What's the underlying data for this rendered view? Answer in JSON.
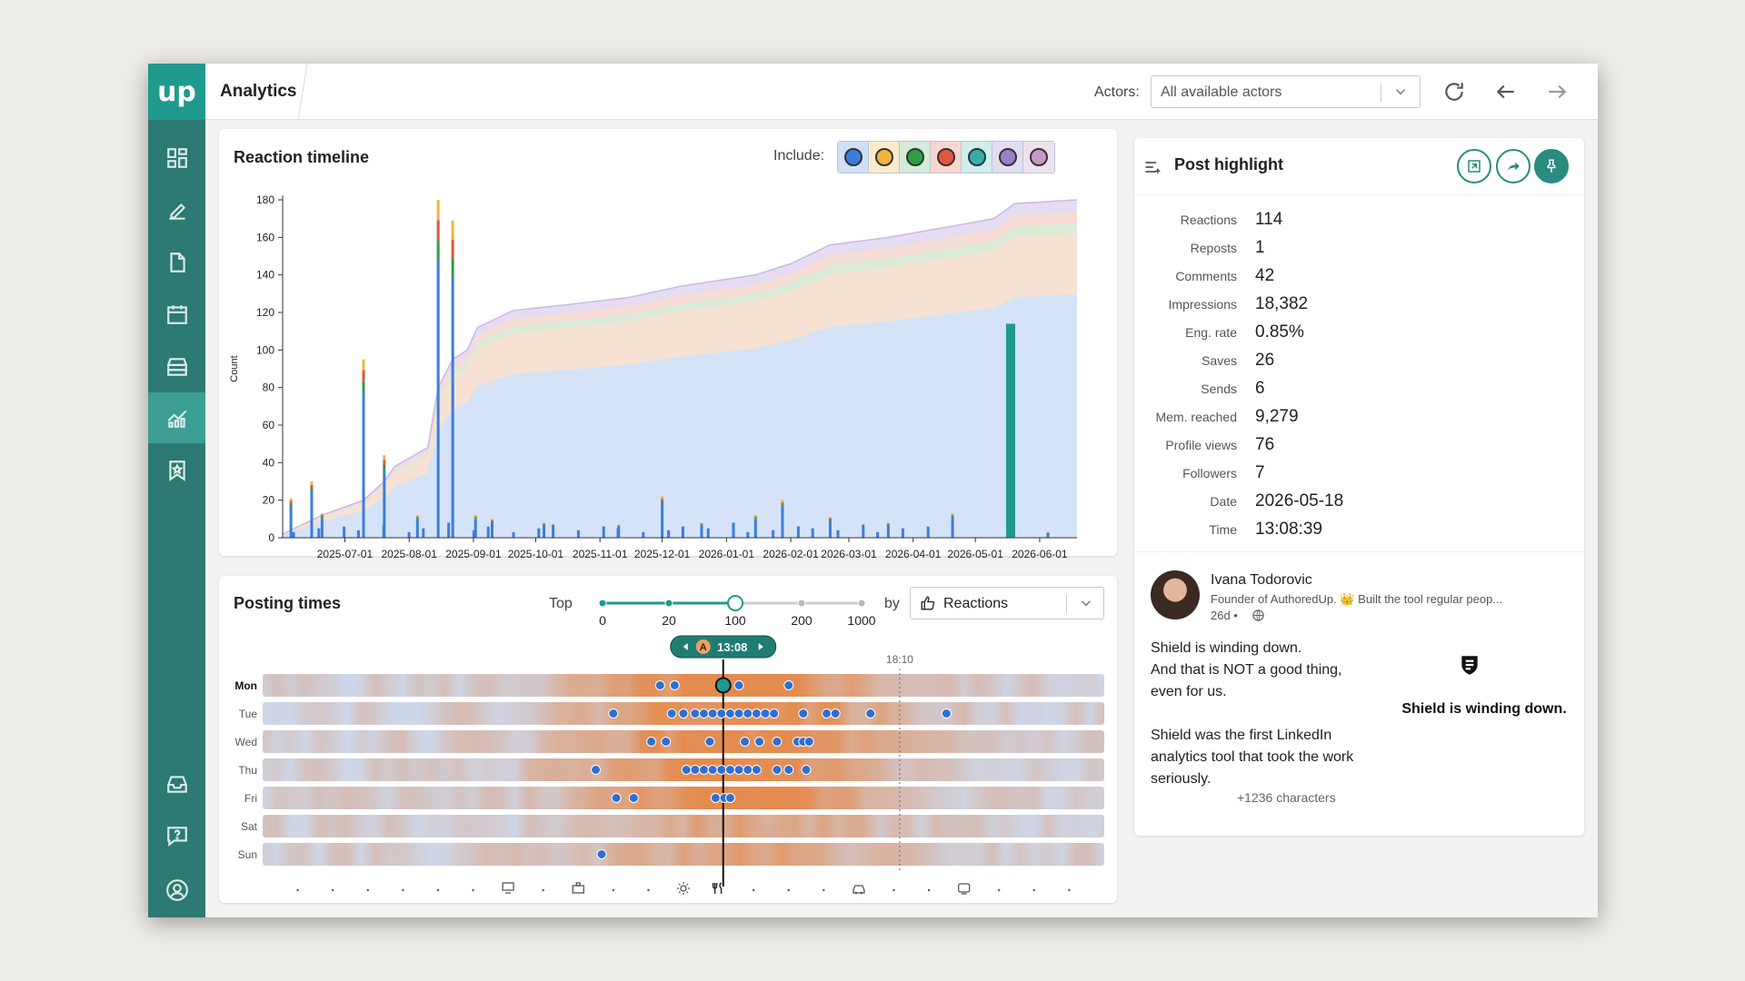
{
  "app": {
    "logo_text": "up",
    "title": "Analytics"
  },
  "topbar": {
    "actors_label": "Actors:",
    "actors_value": "All available actors"
  },
  "sidebar": {
    "items": [
      {
        "name": "dashboard",
        "active": false
      },
      {
        "name": "editor",
        "active": false
      },
      {
        "name": "posts",
        "active": false
      },
      {
        "name": "calendar",
        "active": false
      },
      {
        "name": "archive",
        "active": false
      },
      {
        "name": "analytics",
        "active": true
      },
      {
        "name": "bookmarks",
        "active": false
      },
      {
        "name": "inbox",
        "active": false
      },
      {
        "name": "help",
        "active": false
      },
      {
        "name": "account",
        "active": false
      }
    ]
  },
  "reaction_timeline": {
    "title": "Reaction timeline",
    "include_label": "Include:",
    "reaction_types": [
      {
        "name": "like",
        "color": "#3b7ddd"
      },
      {
        "name": "insightful",
        "color": "#f0b63c"
      },
      {
        "name": "support",
        "color": "#2f9e44"
      },
      {
        "name": "love",
        "color": "#e0573f"
      },
      {
        "name": "funny",
        "color": "#35b0a6"
      },
      {
        "name": "celebrate",
        "color": "#9b7fc9"
      },
      {
        "name": "curious",
        "color": "#c59ac2"
      }
    ]
  },
  "chart_data": {
    "type": "area",
    "ylabel": "Count",
    "ylim": [
      0,
      180
    ],
    "yticks": [
      0,
      20,
      40,
      60,
      80,
      100,
      120,
      140,
      160,
      180
    ],
    "x_ticks": [
      "2025-07-01",
      "2025-08-01",
      "2025-09-01",
      "2025-10-01",
      "2025-11-01",
      "2025-12-01",
      "2026-01-01",
      "2026-02-01",
      "2026-03-01",
      "2026-04-01",
      "2026-05-01",
      "2026-06-01"
    ],
    "x_range": [
      "2025-06-01",
      "2026-06-19"
    ],
    "cumulative": [
      {
        "date": "2025-06-01",
        "total": 2
      },
      {
        "date": "2025-06-20",
        "total": 12
      },
      {
        "date": "2025-07-10",
        "total": 20
      },
      {
        "date": "2025-07-20",
        "total": 30
      },
      {
        "date": "2025-07-25",
        "total": 38
      },
      {
        "date": "2025-08-10",
        "total": 48
      },
      {
        "date": "2025-08-15",
        "total": 80
      },
      {
        "date": "2025-08-22",
        "total": 95
      },
      {
        "date": "2025-08-29",
        "total": 100
      },
      {
        "date": "2025-09-03",
        "total": 112
      },
      {
        "date": "2025-09-20",
        "total": 121
      },
      {
        "date": "2025-10-15",
        "total": 124
      },
      {
        "date": "2025-11-15",
        "total": 128
      },
      {
        "date": "2025-12-10",
        "total": 134
      },
      {
        "date": "2026-01-15",
        "total": 140
      },
      {
        "date": "2026-02-01",
        "total": 146
      },
      {
        "date": "2026-02-20",
        "total": 156
      },
      {
        "date": "2026-03-20",
        "total": 160
      },
      {
        "date": "2026-04-20",
        "total": 166
      },
      {
        "date": "2026-05-10",
        "total": 170
      },
      {
        "date": "2026-05-20",
        "total": 178
      },
      {
        "date": "2026-06-19",
        "total": 180
      }
    ],
    "cumulative_like_share": 0.72,
    "bars": [
      {
        "date": "2025-06-05",
        "value": 21
      },
      {
        "date": "2025-06-15",
        "value": 30
      },
      {
        "date": "2025-06-20",
        "value": 13
      },
      {
        "date": "2025-07-10",
        "value": 95
      },
      {
        "date": "2025-07-20",
        "value": 44
      },
      {
        "date": "2025-08-05",
        "value": 12
      },
      {
        "date": "2025-08-15",
        "value": 180
      },
      {
        "date": "2025-08-22",
        "value": 169
      },
      {
        "date": "2025-09-02",
        "value": 12
      },
      {
        "date": "2025-09-10",
        "value": 10
      },
      {
        "date": "2025-10-05",
        "value": 8
      },
      {
        "date": "2025-11-10",
        "value": 7
      },
      {
        "date": "2025-12-01",
        "value": 22
      },
      {
        "date": "2025-12-20",
        "value": 8
      },
      {
        "date": "2026-01-15",
        "value": 12
      },
      {
        "date": "2026-01-28",
        "value": 20
      },
      {
        "date": "2026-02-20",
        "value": 11
      },
      {
        "date": "2026-03-20",
        "value": 8
      },
      {
        "date": "2026-04-20",
        "value": 13
      },
      {
        "date": "2026-05-18",
        "value": 114
      },
      {
        "date": "2026-06-05",
        "value": 3
      }
    ],
    "highlight_bar": {
      "date": "2026-05-18",
      "value": 114
    }
  },
  "posting_times": {
    "title": "Posting times",
    "top_label": "Top",
    "slider_ticks": [
      "0",
      "20",
      "100",
      "200",
      "1000"
    ],
    "slider_value": "100",
    "by_label": "by",
    "metric": "Reactions",
    "cursor_badge": "A",
    "cursor_time": "13:08",
    "reference_time": "18:10",
    "days": [
      "Mon",
      "Tue",
      "Wed",
      "Thu",
      "Fri",
      "Sat",
      "Sun"
    ],
    "active_day": "Mon",
    "posts": [
      {
        "day": 0,
        "time": "11:20"
      },
      {
        "day": 0,
        "time": "11:45"
      },
      {
        "day": 0,
        "time": "13:08"
      },
      {
        "day": 0,
        "time": "13:35"
      },
      {
        "day": 0,
        "time": "15:00"
      },
      {
        "day": 1,
        "time": "10:00"
      },
      {
        "day": 1,
        "time": "11:40"
      },
      {
        "day": 1,
        "time": "12:00"
      },
      {
        "day": 1,
        "time": "12:20"
      },
      {
        "day": 1,
        "time": "12:35"
      },
      {
        "day": 1,
        "time": "12:50"
      },
      {
        "day": 1,
        "time": "13:05"
      },
      {
        "day": 1,
        "time": "13:20"
      },
      {
        "day": 1,
        "time": "13:35"
      },
      {
        "day": 1,
        "time": "13:50"
      },
      {
        "day": 1,
        "time": "14:05"
      },
      {
        "day": 1,
        "time": "14:20"
      },
      {
        "day": 1,
        "time": "14:35"
      },
      {
        "day": 1,
        "time": "15:25"
      },
      {
        "day": 1,
        "time": "16:05"
      },
      {
        "day": 1,
        "time": "16:20"
      },
      {
        "day": 1,
        "time": "17:20"
      },
      {
        "day": 1,
        "time": "19:30"
      },
      {
        "day": 2,
        "time": "11:05"
      },
      {
        "day": 2,
        "time": "11:30"
      },
      {
        "day": 2,
        "time": "12:45"
      },
      {
        "day": 2,
        "time": "13:45"
      },
      {
        "day": 2,
        "time": "14:10"
      },
      {
        "day": 2,
        "time": "14:40"
      },
      {
        "day": 2,
        "time": "15:15"
      },
      {
        "day": 2,
        "time": "15:25"
      },
      {
        "day": 2,
        "time": "15:35"
      },
      {
        "day": 3,
        "time": "09:30"
      },
      {
        "day": 3,
        "time": "12:05"
      },
      {
        "day": 3,
        "time": "12:20"
      },
      {
        "day": 3,
        "time": "12:35"
      },
      {
        "day": 3,
        "time": "12:50"
      },
      {
        "day": 3,
        "time": "13:05"
      },
      {
        "day": 3,
        "time": "13:20"
      },
      {
        "day": 3,
        "time": "13:35"
      },
      {
        "day": 3,
        "time": "13:50"
      },
      {
        "day": 3,
        "time": "14:05"
      },
      {
        "day": 3,
        "time": "14:40"
      },
      {
        "day": 3,
        "time": "15:00"
      },
      {
        "day": 3,
        "time": "15:30"
      },
      {
        "day": 4,
        "time": "10:05"
      },
      {
        "day": 4,
        "time": "10:35"
      },
      {
        "day": 4,
        "time": "12:55"
      },
      {
        "day": 4,
        "time": "13:10"
      },
      {
        "day": 4,
        "time": "13:20"
      },
      {
        "day": 6,
        "time": "09:40"
      }
    ],
    "bottom_icons": [
      "monitor-icon",
      "briefcase-icon",
      "sun-icon",
      "utensils-icon",
      "car-icon",
      "tv-icon"
    ]
  },
  "post_highlight": {
    "title": "Post highlight",
    "stats": [
      {
        "label": "Reactions",
        "value": "114"
      },
      {
        "label": "Reposts",
        "value": "1"
      },
      {
        "label": "Comments",
        "value": "42"
      },
      {
        "label": "Impressions",
        "value": "18,382"
      },
      {
        "label": "Eng. rate",
        "value": "0.85%"
      },
      {
        "label": "Saves",
        "value": "26"
      },
      {
        "label": "Sends",
        "value": "6"
      },
      {
        "label": "Mem. reached",
        "value": "9,279"
      },
      {
        "label": "Profile views",
        "value": "76"
      },
      {
        "label": "Followers",
        "value": "7"
      },
      {
        "label": "Date",
        "value": "2026-05-18"
      },
      {
        "label": "Time",
        "value": "13:08:39"
      }
    ],
    "author": "Ivana Todorovic",
    "bio": "Founder of AuthoredUp. 👑 Built the tool regular peop...",
    "age": "26d •",
    "post_text": "Shield is winding down.\nAnd that is NOT a good thing, even for us.\n\nShield was the first LinkedIn analytics tool that took the work seriously.",
    "more": "+1236 characters",
    "image_caption": "Shield is winding down."
  }
}
